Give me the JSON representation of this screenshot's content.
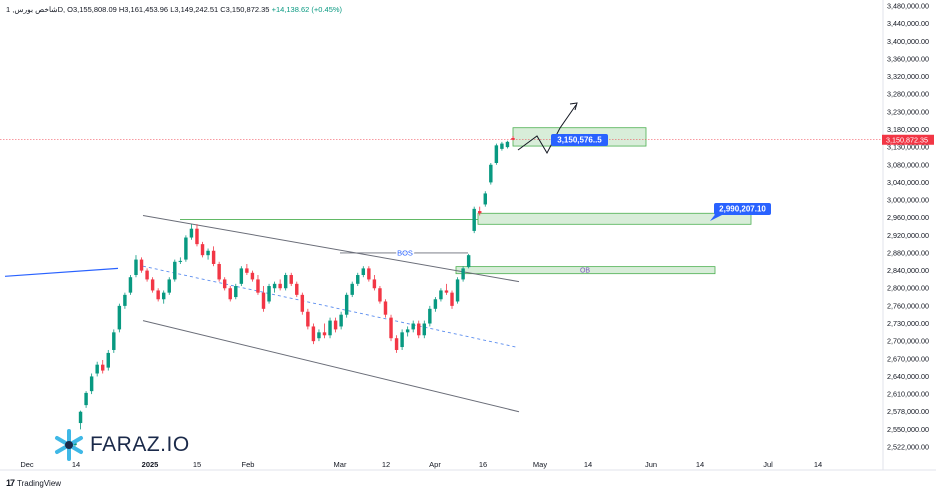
{
  "header": {
    "symbol": "شاخص بورس, 1D, ",
    "open": "O3,155,808.09",
    "high": "H3,161,453.96",
    "low": "L3,149,242.51",
    "close": "C3,150,872.35",
    "change": "+14,138.62 (+0.45%)"
  },
  "footer": {
    "brand": "TradingView",
    "brand_mark": "17"
  },
  "logo": {
    "text": "FARAZ.IO"
  },
  "colors": {
    "up": "#089981",
    "down": "#f23645",
    "zone_fill": "#c8e6c9",
    "zone_border": "#4caf50",
    "label_bg": "#2962ff",
    "price_label": "#f23645"
  },
  "chart_data": {
    "type": "candlestick",
    "y_axis_ticks": [
      "3,480,000.00",
      "3,440,000.00",
      "3,400,000.00",
      "3,360,000.00",
      "3,320,000.00",
      "3,280,000.00",
      "3,230,000.00",
      "3,180,000.00",
      "3,130,000.00",
      "3,080,000.00",
      "3,040,000.00",
      "3,000,000.00",
      "2,960,000.00",
      "2,920,000.00",
      "2,880,000.00",
      "2,840,000.00",
      "2,800,000.00",
      "2,760,000.00",
      "2,730,000.00",
      "2,700,000.00",
      "2,670,000.00",
      "2,640,000.00",
      "2,610,000.00",
      "2,578,000.00",
      "2,550,000.00",
      "2,522,000.00"
    ],
    "y_axis_values": [
      3480000,
      3440000,
      3400000,
      3360000,
      3320000,
      3280000,
      3230000,
      3180000,
      3130000,
      3080000,
      3040000,
      3000000,
      2960000,
      2920000,
      2880000,
      2840000,
      2800000,
      2760000,
      2730000,
      2700000,
      2670000,
      2640000,
      2610000,
      2578000,
      2550000,
      2522000
    ],
    "x_axis_ticks": [
      "Dec",
      "14",
      "2025",
      "15",
      "Feb",
      "Mar",
      "12",
      "Apr",
      "16",
      "May",
      "14",
      "Jun",
      "14",
      "Jul",
      "14"
    ],
    "current_price_label": "3,150,872.35",
    "annotations": [
      {
        "text": "BOS"
      },
      {
        "text": "OB"
      },
      {
        "text": "3,150,576..5"
      },
      {
        "text": "2,990,207.10"
      }
    ],
    "candles": [
      {
        "o": 2525000,
        "h": 2530000,
        "l": 2517000,
        "c": 2528000
      },
      {
        "o": 2560000,
        "h": 2580000,
        "l": 2550000,
        "c": 2578000
      },
      {
        "o": 2590000,
        "h": 2615000,
        "l": 2585000,
        "c": 2612000
      },
      {
        "o": 2615000,
        "h": 2645000,
        "l": 2610000,
        "c": 2640000
      },
      {
        "o": 2645000,
        "h": 2665000,
        "l": 2640000,
        "c": 2660000
      },
      {
        "o": 2660000,
        "h": 2668000,
        "l": 2645000,
        "c": 2650000
      },
      {
        "o": 2655000,
        "h": 2685000,
        "l": 2650000,
        "c": 2680000
      },
      {
        "o": 2685000,
        "h": 2720000,
        "l": 2680000,
        "c": 2715000
      },
      {
        "o": 2720000,
        "h": 2765000,
        "l": 2715000,
        "c": 2760000
      },
      {
        "o": 2760000,
        "h": 2790000,
        "l": 2755000,
        "c": 2785000
      },
      {
        "o": 2790000,
        "h": 2830000,
        "l": 2785000,
        "c": 2825000
      },
      {
        "o": 2830000,
        "h": 2875000,
        "l": 2825000,
        "c": 2865000
      },
      {
        "o": 2865000,
        "h": 2870000,
        "l": 2835000,
        "c": 2840000
      },
      {
        "o": 2840000,
        "h": 2845000,
        "l": 2815000,
        "c": 2820000
      },
      {
        "o": 2820000,
        "h": 2825000,
        "l": 2790000,
        "c": 2795000
      },
      {
        "o": 2795000,
        "h": 2800000,
        "l": 2770000,
        "c": 2775000
      },
      {
        "o": 2775000,
        "h": 2795000,
        "l": 2765000,
        "c": 2790000
      },
      {
        "o": 2790000,
        "h": 2825000,
        "l": 2785000,
        "c": 2820000
      },
      {
        "o": 2820000,
        "h": 2865000,
        "l": 2815000,
        "c": 2860000
      },
      {
        "o": 2860000,
        "h": 2870000,
        "l": 2855000,
        "c": 2862000
      },
      {
        "o": 2865000,
        "h": 2920000,
        "l": 2860000,
        "c": 2915000
      },
      {
        "o": 2915000,
        "h": 2945000,
        "l": 2910000,
        "c": 2935000
      },
      {
        "o": 2935000,
        "h": 2945000,
        "l": 2895000,
        "c": 2900000
      },
      {
        "o": 2900000,
        "h": 2905000,
        "l": 2870000,
        "c": 2875000
      },
      {
        "o": 2875000,
        "h": 2890000,
        "l": 2865000,
        "c": 2885000
      },
      {
        "o": 2885000,
        "h": 2895000,
        "l": 2850000,
        "c": 2855000
      },
      {
        "o": 2855000,
        "h": 2860000,
        "l": 2815000,
        "c": 2820000
      },
      {
        "o": 2820000,
        "h": 2825000,
        "l": 2795000,
        "c": 2800000
      },
      {
        "o": 2800000,
        "h": 2805000,
        "l": 2770000,
        "c": 2775000
      },
      {
        "o": 2780000,
        "h": 2810000,
        "l": 2775000,
        "c": 2805000
      },
      {
        "o": 2810000,
        "h": 2850000,
        "l": 2805000,
        "c": 2845000
      },
      {
        "o": 2845000,
        "h": 2855000,
        "l": 2830000,
        "c": 2835000
      },
      {
        "o": 2835000,
        "h": 2840000,
        "l": 2815000,
        "c": 2820000
      },
      {
        "o": 2820000,
        "h": 2830000,
        "l": 2785000,
        "c": 2790000
      },
      {
        "o": 2790000,
        "h": 2805000,
        "l": 2750000,
        "c": 2755000
      },
      {
        "o": 2770000,
        "h": 2810000,
        "l": 2765000,
        "c": 2805000
      },
      {
        "o": 2800000,
        "h": 2815000,
        "l": 2790000,
        "c": 2810000
      },
      {
        "o": 2810000,
        "h": 2820000,
        "l": 2795000,
        "c": 2800000
      },
      {
        "o": 2800000,
        "h": 2835000,
        "l": 2795000,
        "c": 2830000
      },
      {
        "o": 2830000,
        "h": 2835000,
        "l": 2805000,
        "c": 2810000
      },
      {
        "o": 2810000,
        "h": 2815000,
        "l": 2780000,
        "c": 2785000
      },
      {
        "o": 2785000,
        "h": 2790000,
        "l": 2745000,
        "c": 2750000
      },
      {
        "o": 2750000,
        "h": 2755000,
        "l": 2720000,
        "c": 2725000
      },
      {
        "o": 2725000,
        "h": 2730000,
        "l": 2695000,
        "c": 2700000
      },
      {
        "o": 2705000,
        "h": 2720000,
        "l": 2700000,
        "c": 2715000
      },
      {
        "o": 2715000,
        "h": 2730000,
        "l": 2705000,
        "c": 2710000
      },
      {
        "o": 2710000,
        "h": 2740000,
        "l": 2705000,
        "c": 2735000
      },
      {
        "o": 2735000,
        "h": 2740000,
        "l": 2715000,
        "c": 2720000
      },
      {
        "o": 2725000,
        "h": 2750000,
        "l": 2720000,
        "c": 2745000
      },
      {
        "o": 2745000,
        "h": 2790000,
        "l": 2740000,
        "c": 2785000
      },
      {
        "o": 2785000,
        "h": 2815000,
        "l": 2780000,
        "c": 2810000
      },
      {
        "o": 2810000,
        "h": 2835000,
        "l": 2805000,
        "c": 2830000
      },
      {
        "o": 2830000,
        "h": 2850000,
        "l": 2825000,
        "c": 2845000
      },
      {
        "o": 2845000,
        "h": 2850000,
        "l": 2815000,
        "c": 2820000
      },
      {
        "o": 2820000,
        "h": 2830000,
        "l": 2795000,
        "c": 2800000
      },
      {
        "o": 2800000,
        "h": 2805000,
        "l": 2765000,
        "c": 2770000
      },
      {
        "o": 2770000,
        "h": 2775000,
        "l": 2740000,
        "c": 2745000
      },
      {
        "o": 2740000,
        "h": 2745000,
        "l": 2700000,
        "c": 2705000
      },
      {
        "o": 2705000,
        "h": 2710000,
        "l": 2680000,
        "c": 2685000
      },
      {
        "o": 2690000,
        "h": 2720000,
        "l": 2685000,
        "c": 2715000
      },
      {
        "o": 2715000,
        "h": 2725000,
        "l": 2708000,
        "c": 2720000
      },
      {
        "o": 2720000,
        "h": 2735000,
        "l": 2715000,
        "c": 2730000
      },
      {
        "o": 2730000,
        "h": 2735000,
        "l": 2705000,
        "c": 2710000
      },
      {
        "o": 2710000,
        "h": 2735000,
        "l": 2705000,
        "c": 2730000
      },
      {
        "o": 2730000,
        "h": 2760000,
        "l": 2725000,
        "c": 2755000
      },
      {
        "o": 2755000,
        "h": 2780000,
        "l": 2750000,
        "c": 2775000
      },
      {
        "o": 2775000,
        "h": 2800000,
        "l": 2770000,
        "c": 2795000
      },
      {
        "o": 2795000,
        "h": 2810000,
        "l": 2785000,
        "c": 2790000
      },
      {
        "o": 2790000,
        "h": 2795000,
        "l": 2755000,
        "c": 2760000
      },
      {
        "o": 2770000,
        "h": 2825000,
        "l": 2765000,
        "c": 2820000
      },
      {
        "o": 2820000,
        "h": 2850000,
        "l": 2815000,
        "c": 2845000
      },
      {
        "o": 2848000,
        "h": 2878000,
        "l": 2845000,
        "c": 2875000
      },
      {
        "o": 2930000,
        "h": 2985000,
        "l": 2925000,
        "c": 2980000
      },
      {
        "o": 2975000,
        "h": 2985000,
        "l": 2965000,
        "c": 2970000
      },
      {
        "o": 2990000,
        "h": 3020000,
        "l": 2985000,
        "c": 3015000
      },
      {
        "o": 3040000,
        "h": 3085000,
        "l": 3035000,
        "c": 3080000
      },
      {
        "o": 3085000,
        "h": 3140000,
        "l": 3080000,
        "c": 3135000
      },
      {
        "o": 3125000,
        "h": 3145000,
        "l": 3120000,
        "c": 3140000
      },
      {
        "o": 3130000,
        "h": 3148000,
        "l": 3126000,
        "c": 3145000
      },
      {
        "o": 3155808,
        "h": 3161454,
        "l": 3149243,
        "c": 3150872
      }
    ]
  }
}
